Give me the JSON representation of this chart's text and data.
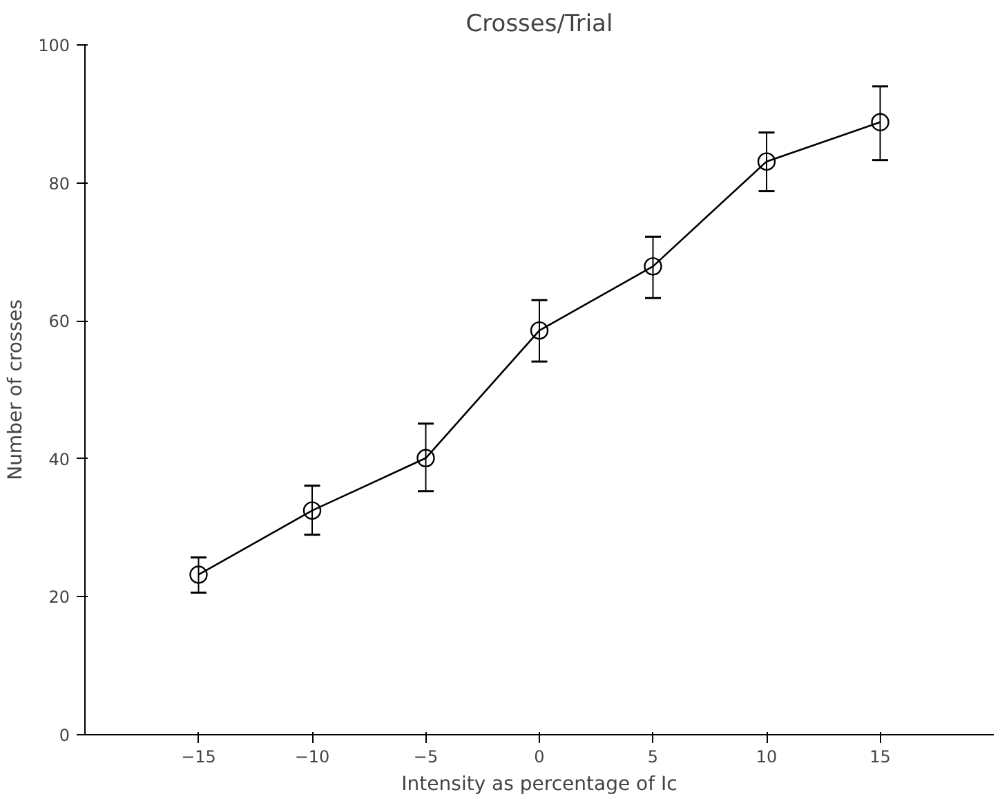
{
  "chart_data": {
    "type": "line",
    "title": "Crosses/Trial",
    "xlabel": "Intensity as percentage of Ic",
    "ylabel": "Number of crosses",
    "x": [
      -15,
      -10,
      -5,
      0,
      5,
      10,
      15
    ],
    "series": [
      {
        "color": "#000000",
        "values": [
          23.2,
          32.5,
          40.1,
          58.6,
          67.9,
          83.1,
          88.8
        ],
        "errors": [
          [
            20.6,
            25.7
          ],
          [
            29.0,
            36.1
          ],
          [
            35.3,
            45.1
          ],
          [
            54.1,
            63.0
          ],
          [
            63.3,
            72.2
          ],
          [
            78.8,
            87.3
          ],
          [
            83.3,
            94.0
          ]
        ]
      }
    ],
    "xlim": [
      -20,
      20
    ],
    "xticks": [
      -15,
      -10,
      -5,
      0,
      5,
      10,
      15
    ],
    "ylim": [
      0,
      100
    ],
    "yticks": [
      0,
      20,
      40,
      60,
      80,
      100
    ],
    "marker": "circle",
    "line_style": "solid",
    "grid": false
  }
}
